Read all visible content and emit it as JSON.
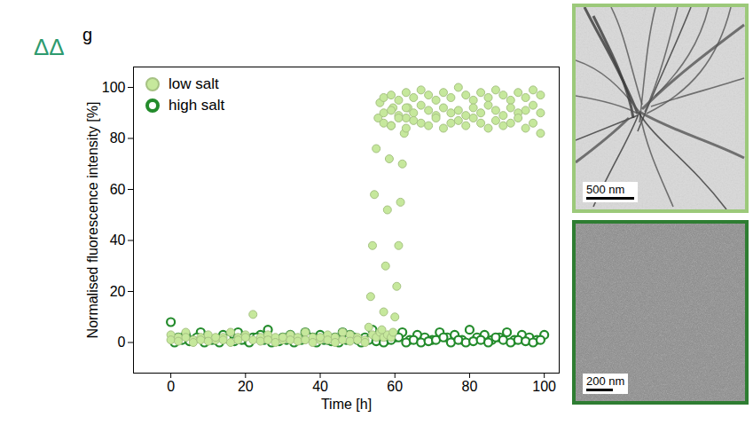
{
  "chart_data": {
    "type": "scatter",
    "panel_label": "g",
    "annotation": "ΔΔ",
    "x_label": "Time [h]",
    "y_label": "Normalised fluorescence intensity [%]",
    "xlim": [
      -10,
      104
    ],
    "ylim": [
      -12,
      108
    ],
    "xticks": [
      0,
      20,
      40,
      60,
      80,
      100
    ],
    "yticks": [
      0,
      20,
      40,
      60,
      80,
      100
    ],
    "grid": false,
    "legend": "upper left",
    "series": [
      {
        "name": "high salt",
        "color": "#238b2b",
        "marker": "ring",
        "x": [
          0,
          2,
          4,
          6,
          8,
          10,
          12,
          14,
          16,
          18,
          20,
          22,
          24,
          26,
          28,
          30,
          32,
          34,
          36,
          38,
          40,
          42,
          44,
          46,
          48,
          50,
          52,
          54,
          56,
          58,
          60,
          62,
          64,
          66,
          68,
          70,
          72,
          74,
          76,
          78,
          80,
          82,
          84,
          86,
          88,
          90,
          92,
          94,
          96,
          98,
          100,
          1,
          3,
          5,
          7,
          9,
          11,
          13,
          15,
          17,
          19,
          21,
          23,
          25,
          27,
          29,
          31,
          33,
          35,
          37,
          39,
          41,
          43,
          45,
          47,
          49,
          51,
          53,
          55,
          57,
          59,
          61,
          63,
          65,
          67,
          69,
          71,
          73,
          75,
          77,
          79,
          81,
          83,
          85,
          87,
          89,
          91,
          93,
          95,
          97,
          99
        ],
        "values": [
          8,
          2,
          3,
          1,
          4,
          2,
          1,
          3,
          2,
          4,
          1,
          2,
          3,
          5,
          1,
          2,
          3,
          1,
          4,
          2,
          3,
          1,
          2,
          4,
          3,
          1,
          2,
          5,
          3,
          1,
          2,
          4,
          1,
          3,
          2,
          1,
          4,
          2,
          3,
          1,
          5,
          2,
          3,
          1,
          2,
          4,
          1,
          3,
          2,
          1,
          3,
          0,
          1,
          0.5,
          2,
          0,
          1,
          0,
          1.5,
          0.5,
          1,
          0,
          2,
          1,
          0,
          0.5,
          1,
          0,
          1,
          2,
          0,
          1,
          0.5,
          0,
          1,
          2,
          0,
          1,
          0.5,
          0,
          1,
          2,
          0,
          1,
          0,
          0.5,
          1,
          2,
          0,
          1,
          0,
          0.5,
          1,
          0,
          2,
          1,
          0,
          1,
          0.5,
          0,
          1
        ]
      },
      {
        "name": "low salt",
        "color": "#c6e89c",
        "marker": "circle",
        "x": [
          0,
          2,
          4,
          6,
          8,
          10,
          12,
          14,
          16,
          18,
          20,
          22,
          24,
          26,
          28,
          30,
          32,
          34,
          36,
          38,
          40,
          42,
          44,
          46,
          48,
          50,
          52,
          0,
          2,
          4,
          6,
          8,
          10,
          12,
          14,
          16,
          18,
          20,
          22,
          24,
          26,
          28,
          30,
          32,
          34,
          36,
          38,
          40,
          42,
          44,
          46,
          48,
          50,
          52,
          54,
          55,
          56,
          57,
          58,
          59,
          53,
          53.5,
          54,
          54.5,
          55,
          55.5,
          56,
          56.5,
          57,
          57.5,
          58,
          58.5,
          59,
          59.5,
          59.5,
          60,
          60.5,
          61,
          61.5,
          62,
          62.5,
          63,
          63.5,
          57,
          59,
          61,
          63,
          65,
          67,
          69,
          71,
          73,
          75,
          77,
          79,
          81,
          83,
          85,
          87,
          89,
          91,
          93,
          95,
          97,
          99,
          57,
          59,
          61,
          63,
          65,
          67,
          69,
          71,
          73,
          75,
          77,
          79,
          81,
          83,
          85,
          87,
          89,
          91,
          93,
          95,
          97,
          99,
          57,
          59,
          61,
          63,
          65,
          67,
          69,
          71,
          73,
          75,
          77,
          79,
          81,
          83,
          85,
          87,
          89,
          91,
          93,
          95,
          97,
          99
        ],
        "values": [
          3,
          2,
          4,
          1,
          2,
          3,
          1,
          2,
          4,
          2,
          3,
          1,
          2,
          3,
          2,
          1,
          3,
          2,
          4,
          2,
          1,
          3,
          2,
          4,
          3,
          2,
          1,
          1,
          0.5,
          2,
          0,
          1,
          0.5,
          2,
          1,
          0,
          1,
          2,
          11,
          0.5,
          1,
          0,
          2,
          1,
          0.5,
          1,
          0,
          2,
          1,
          0,
          1,
          0.5,
          1,
          0,
          3,
          2,
          4,
          2,
          3,
          2,
          6,
          18,
          38,
          58,
          76,
          88,
          94,
          5,
          12,
          30,
          52,
          72,
          85,
          92,
          4,
          10,
          22,
          38,
          55,
          70,
          82,
          88,
          92,
          96,
          97,
          95,
          98,
          96,
          99,
          97,
          95,
          98,
          96,
          100,
          97,
          95,
          98,
          96,
          99,
          97,
          95,
          98,
          96,
          99,
          97,
          90,
          91,
          89,
          92,
          90,
          93,
          91,
          89,
          92,
          90,
          91,
          89,
          92,
          90,
          93,
          91,
          89,
          92,
          90,
          91,
          93,
          90,
          86,
          85,
          88,
          84,
          87,
          86,
          85,
          88,
          84,
          86,
          87,
          85,
          88,
          86,
          84,
          87,
          85,
          86,
          88,
          84,
          86,
          82
        ]
      }
    ],
    "micrographs": [
      {
        "scale_bar": "500 nm",
        "color": "#9cc97a"
      },
      {
        "scale_bar": "200 nm",
        "color": "#2e7d32"
      }
    ]
  }
}
